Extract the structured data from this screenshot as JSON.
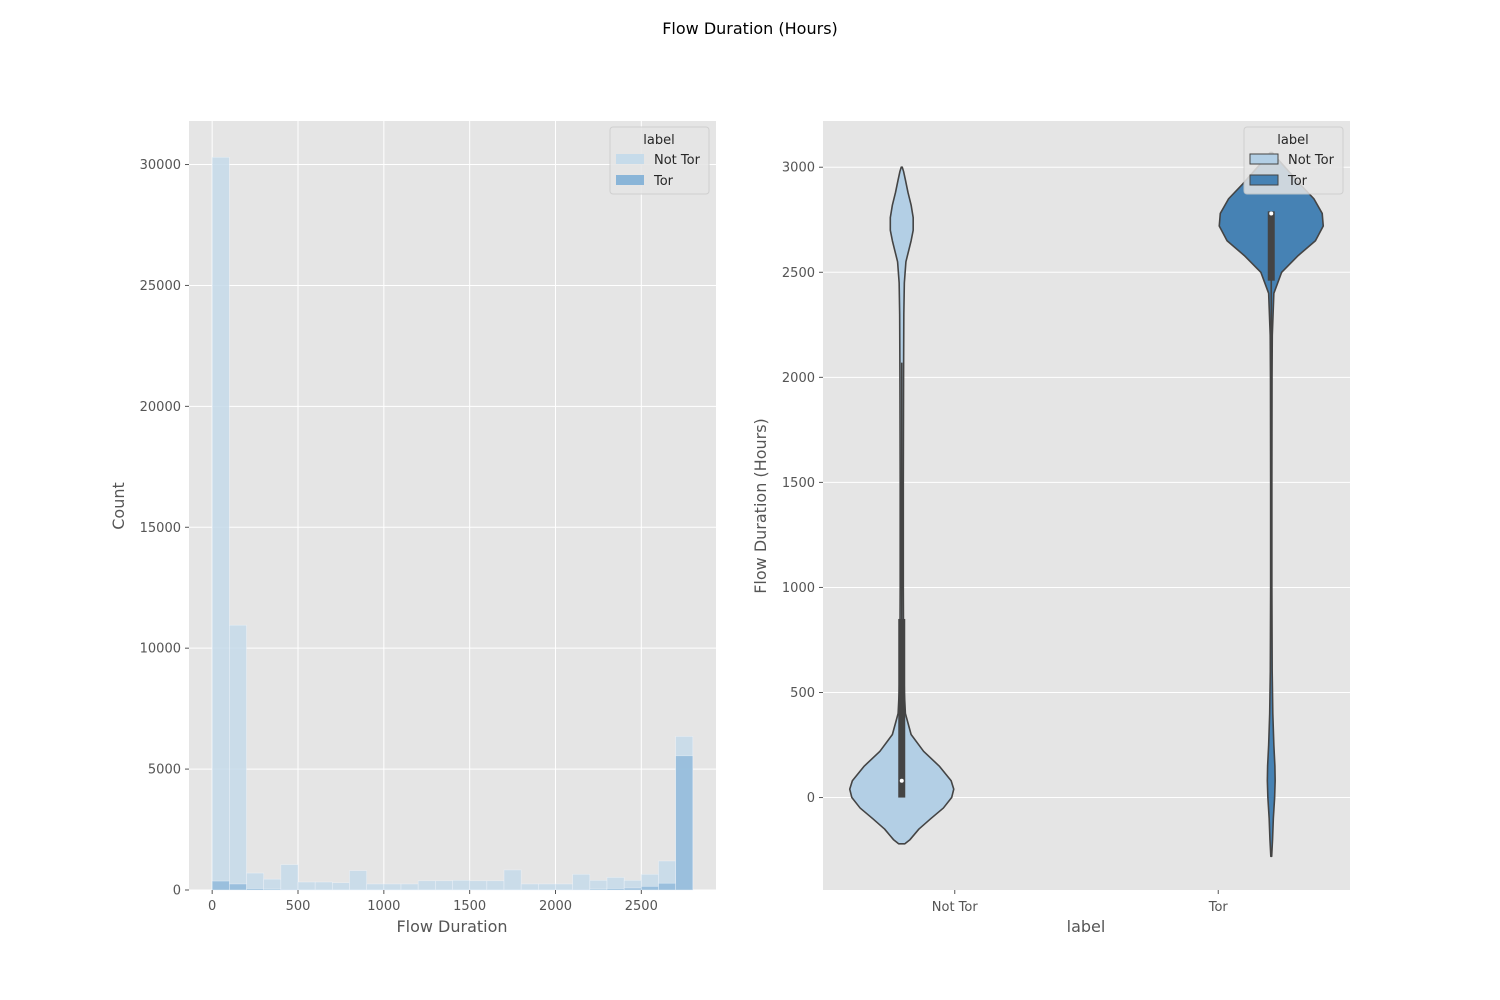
{
  "figure": {
    "title": "Flow Duration (Hours)"
  },
  "chart_data": [
    {
      "type": "bar",
      "subtype": "histogram",
      "xlabel": "Flow Duration",
      "ylabel": "Count",
      "xlim": [
        -135,
        2935
      ],
      "ylim": [
        0,
        31800
      ],
      "xticks": [
        0,
        500,
        1000,
        1500,
        2000,
        2500
      ],
      "yticks": [
        0,
        5000,
        10000,
        15000,
        20000,
        25000,
        30000
      ],
      "grid": true,
      "bin_start": 0,
      "bin_width": 100,
      "legend": {
        "title": "label",
        "position": "upper right"
      },
      "series": [
        {
          "name": "Not Tor",
          "color": "#c6dbea",
          "values": [
            30300,
            10950,
            700,
            450,
            1050,
            330,
            330,
            300,
            800,
            250,
            250,
            250,
            380,
            380,
            400,
            380,
            380,
            830,
            250,
            250,
            250,
            650,
            400,
            520,
            400,
            650,
            1200,
            6350
          ]
        },
        {
          "name": "Tor",
          "color": "#8ab5d8",
          "values": [
            370,
            250,
            60,
            40,
            30,
            20,
            20,
            20,
            20,
            20,
            20,
            20,
            20,
            20,
            20,
            20,
            20,
            20,
            20,
            20,
            20,
            30,
            40,
            60,
            80,
            150,
            280,
            5550
          ]
        }
      ]
    },
    {
      "type": "violin",
      "xlabel": "label",
      "ylabel": "Flow Duration (Hours)",
      "categories": [
        "Not Tor",
        "Tor"
      ],
      "ylim": [
        -440,
        3220
      ],
      "yticks": [
        0,
        500,
        1000,
        1500,
        2000,
        2500,
        3000
      ],
      "grid": true,
      "legend": {
        "title": "label",
        "position": "upper right"
      },
      "series": [
        {
          "name": "Not Tor",
          "color": "#b3cfe5",
          "range": [
            -220,
            3000
          ],
          "median": 80,
          "quartiles": [
            0,
            850
          ],
          "whiskers": [
            0,
            2070
          ],
          "density": [
            [
              -220,
              0.06
            ],
            [
              -200,
              0.16
            ],
            [
              -150,
              0.33
            ],
            [
              -100,
              0.56
            ],
            [
              -50,
              0.8
            ],
            [
              0,
              0.96
            ],
            [
              40,
              1.0
            ],
            [
              80,
              0.95
            ],
            [
              150,
              0.72
            ],
            [
              220,
              0.42
            ],
            [
              300,
              0.18
            ],
            [
              400,
              0.07
            ],
            [
              500,
              0.05
            ],
            [
              700,
              0.035
            ],
            [
              1000,
              0.03
            ],
            [
              1500,
              0.03
            ],
            [
              2000,
              0.035
            ],
            [
              2300,
              0.04
            ],
            [
              2450,
              0.05
            ],
            [
              2550,
              0.08
            ],
            [
              2600,
              0.13
            ],
            [
              2650,
              0.18
            ],
            [
              2700,
              0.22
            ],
            [
              2760,
              0.22
            ],
            [
              2820,
              0.18
            ],
            [
              2880,
              0.12
            ],
            [
              2940,
              0.07
            ],
            [
              2980,
              0.035
            ],
            [
              3000,
              0.01
            ]
          ]
        },
        {
          "name": "Tor",
          "color": "#4682b4",
          "range": [
            -280,
            3070
          ],
          "median": 2780,
          "quartiles": [
            2460,
            2790
          ],
          "whiskers": [
            2020,
            2790
          ],
          "density": [
            [
              -280,
              0.008
            ],
            [
              -200,
              0.025
            ],
            [
              -100,
              0.04
            ],
            [
              0,
              0.065
            ],
            [
              80,
              0.075
            ],
            [
              150,
              0.07
            ],
            [
              250,
              0.05
            ],
            [
              400,
              0.03
            ],
            [
              600,
              0.018
            ],
            [
              1000,
              0.012
            ],
            [
              1500,
              0.012
            ],
            [
              2000,
              0.015
            ],
            [
              2200,
              0.02
            ],
            [
              2400,
              0.05
            ],
            [
              2500,
              0.2
            ],
            [
              2580,
              0.52
            ],
            [
              2650,
              0.85
            ],
            [
              2720,
              1.0
            ],
            [
              2780,
              0.98
            ],
            [
              2850,
              0.82
            ],
            [
              2920,
              0.55
            ],
            [
              2990,
              0.3
            ],
            [
              3040,
              0.12
            ],
            [
              3070,
              0.02
            ]
          ]
        }
      ]
    }
  ]
}
